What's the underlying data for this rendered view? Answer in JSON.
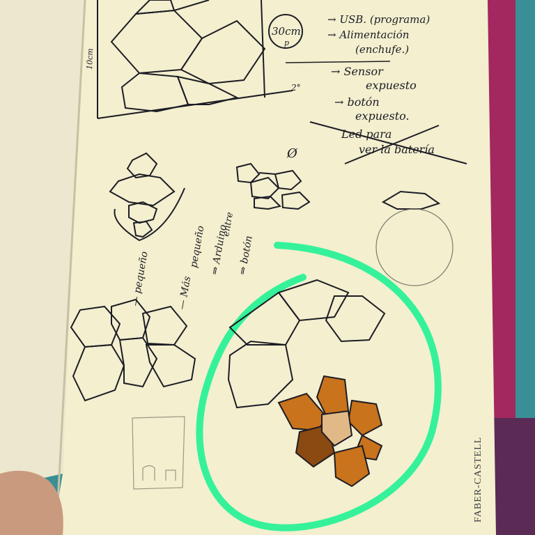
{
  "photo": {
    "subject": "sketchbook page with hexagon lamp sketches",
    "colors": {
      "page": "#f3efcf",
      "ink": "#1c1c24",
      "highlight_green": "#35f29a",
      "orange_pen": "#c9731c",
      "cloth": "#3a8f96",
      "cover": "#a3285f"
    }
  },
  "notes": {
    "size_label": "30cm",
    "size_sub": "p",
    "dim_label": "10cm",
    "dim_angle": "2°",
    "list": [
      "→ USB. (programa)",
      "→ Alimentación",
      "(enchufe.)",
      "→ Sensor",
      "expuesto",
      "→ botón",
      "expuesto.",
      "Led para",
      "ver la batería"
    ],
    "phi": "Ø",
    "vertical": [
      "— pequeño",
      "— Más",
      "pequeño",
      "⇒ Arduino",
      "entre",
      "⇒ botón"
    ]
  },
  "brand": {
    "text": "FABER-CASTELL"
  }
}
